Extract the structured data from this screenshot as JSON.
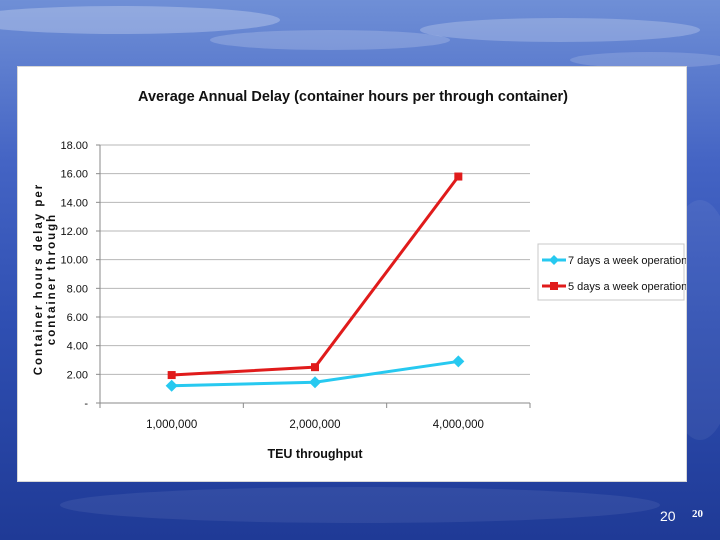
{
  "slide": {
    "page_number": "20",
    "page_number_small": "20"
  },
  "colors": {
    "series_7day": "#27c9f0",
    "series_5day": "#e01b1b",
    "grid": "#b7b7b7",
    "axis": "#8a8a8a"
  },
  "chart_data": {
    "type": "line",
    "title": "Average Annual Delay (container hours per through container)",
    "xlabel": "TEU throughput",
    "ylabel": "Container hours delay per container through",
    "ylabel_lines": [
      "Container hours delay per",
      "container through"
    ],
    "categories": [
      "1,000,000",
      "2,000,000",
      "4,000,000"
    ],
    "ylim": [
      0,
      18
    ],
    "yticks": [
      0,
      2,
      4,
      6,
      8,
      10,
      12,
      14,
      16,
      18
    ],
    "ytick_labels": [
      "-",
      "2.00",
      "4.00",
      "6.00",
      "8.00",
      "10.00",
      "12.00",
      "14.00",
      "16.00",
      "18.00"
    ],
    "grid": true,
    "legend_position": "right",
    "series": [
      {
        "name": "7 days a week operation",
        "marker": "diamond",
        "values": [
          1.2,
          1.45,
          2.9
        ]
      },
      {
        "name": "5 days a week operation",
        "marker": "square",
        "values": [
          1.95,
          2.5,
          15.8
        ]
      }
    ]
  }
}
